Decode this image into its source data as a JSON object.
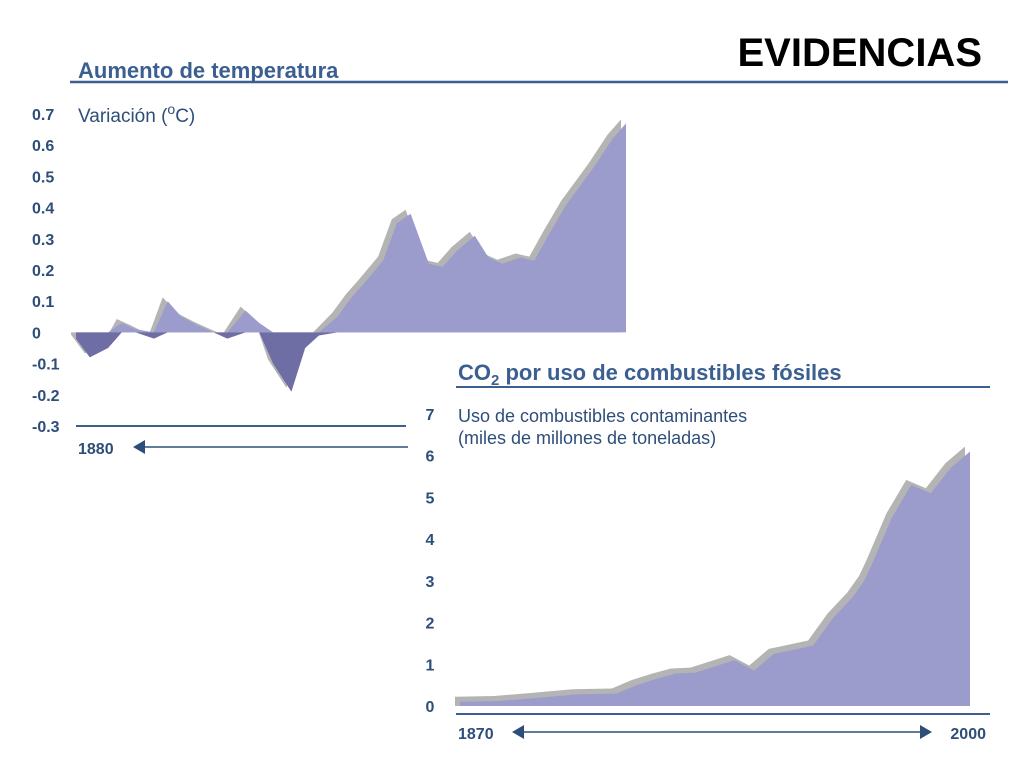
{
  "slide": {
    "title": "EVIDENCIAS",
    "colors": {
      "fill": "#9c9ccc",
      "negative_fill": "#6e6ea4",
      "shadow": "#b4b4b4",
      "rule": "#3b5f91",
      "text": "#2e4e7a",
      "title": "#000000"
    }
  },
  "chart_data": [
    {
      "type": "area",
      "title": "Aumento de temperatura",
      "ylabel": "Variación (°C)",
      "ylabel_parts": {
        "text": "Variación (",
        "superscript": "o",
        "unit": "C)"
      },
      "ylim": [
        -0.3,
        0.7
      ],
      "yticks": [
        "0.7",
        "0.6",
        "0.5",
        "0.4",
        "0.3",
        "0.2",
        "0.1",
        "0",
        "-0.1",
        "-0.2",
        "-0.3"
      ],
      "x_start_label": "1880",
      "x": [
        1880,
        1883,
        1887,
        1890,
        1893,
        1897,
        1900,
        1903,
        1907,
        1910,
        1913,
        1917,
        1920,
        1923,
        1927,
        1930,
        1933,
        1937,
        1940,
        1943,
        1947,
        1950,
        1953,
        1957,
        1960,
        1963,
        1967,
        1970,
        1973,
        1977,
        1980,
        1983,
        1987,
        1990,
        1993,
        1997,
        2000
      ],
      "y": [
        -0.02,
        -0.08,
        -0.05,
        0.03,
        0.01,
        -0.02,
        0.1,
        0.05,
        0.02,
        0.0,
        -0.02,
        0.07,
        0.03,
        -0.1,
        -0.19,
        -0.05,
        -0.01,
        0.05,
        0.11,
        0.16,
        0.23,
        0.35,
        0.38,
        0.22,
        0.21,
        0.26,
        0.31,
        0.24,
        0.22,
        0.24,
        0.23,
        0.31,
        0.41,
        0.47,
        0.53,
        0.62,
        0.67
      ],
      "grid": false
    },
    {
      "type": "area",
      "title_parts": {
        "prefix": "CO",
        "subscript": "2",
        "suffix": " por uso de combustibles fósiles"
      },
      "ylabel_lines": [
        "Uso de combustibles contaminantes",
        "(miles de millones de toneladas)"
      ],
      "ylim": [
        0,
        7
      ],
      "yticks": [
        "7",
        "6",
        "5",
        "4",
        "3",
        "2",
        "1",
        "0"
      ],
      "x_start_label": "1870",
      "x_end_label": "2000",
      "x": [
        1870,
        1880,
        1890,
        1900,
        1910,
        1915,
        1920,
        1925,
        1930,
        1935,
        1940,
        1945,
        1950,
        1955,
        1960,
        1965,
        1970,
        1973,
        1975,
        1980,
        1985,
        1990,
        1995,
        2000
      ],
      "y": [
        0.1,
        0.12,
        0.2,
        0.28,
        0.3,
        0.5,
        0.65,
        0.78,
        0.8,
        0.95,
        1.1,
        0.85,
        1.25,
        1.35,
        1.45,
        2.1,
        2.6,
        3.0,
        3.4,
        4.5,
        5.3,
        5.1,
        5.7,
        6.1
      ],
      "grid": false
    }
  ]
}
